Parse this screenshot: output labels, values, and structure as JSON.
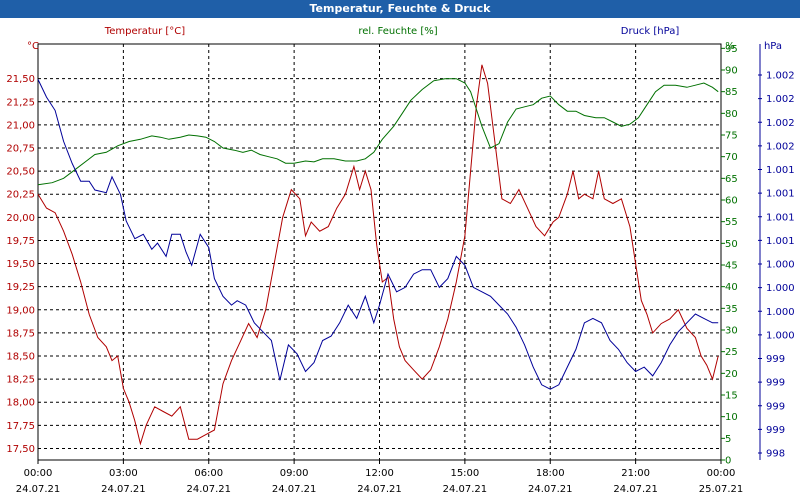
{
  "window": {
    "title": "Temperatur, Feuchte & Druck"
  },
  "colors": {
    "temperature": "#b00000",
    "humidity": "#007000",
    "pressure": "#000099",
    "titlebar": "#1f5fa8"
  },
  "chart_data": {
    "type": "line",
    "grid": true,
    "xlim": [
      "2021-07-24 00:00",
      "2021-07-25 00:00"
    ],
    "x_ticks": [
      {
        "time": "00:00",
        "date": "24.07.21"
      },
      {
        "time": "03:00",
        "date": "24.07.21"
      },
      {
        "time": "06:00",
        "date": "24.07.21"
      },
      {
        "time": "09:00",
        "date": "24.07.21"
      },
      {
        "time": "12:00",
        "date": "24.07.21"
      },
      {
        "time": "15:00",
        "date": "24.07.21"
      },
      {
        "time": "18:00",
        "date": "24.07.21"
      },
      {
        "time": "21:00",
        "date": "24.07.21"
      },
      {
        "time": "00:00",
        "date": "25.07.21"
      }
    ],
    "axes": {
      "temperature": {
        "label": "Temperatur [°C]",
        "unit": "°C",
        "range": [
          17.375,
          21.875
        ],
        "ticks": [
          "17,50",
          "17,75",
          "18,00",
          "18,25",
          "18,50",
          "18,75",
          "19,00",
          "19,25",
          "19,50",
          "19,75",
          "20,00",
          "20,25",
          "20,50",
          "20,75",
          "21,00",
          "21,25",
          "21,50"
        ]
      },
      "humidity": {
        "label": "rel. Feuchte [%]",
        "unit": "%",
        "range": [
          0,
          96
        ],
        "ticks": [
          "0",
          "5",
          "10",
          "15",
          "20",
          "25",
          "30",
          "35",
          "40",
          "45",
          "50",
          "55",
          "60",
          "65",
          "70",
          "75",
          "80",
          "85",
          "90",
          "95"
        ]
      },
      "pressure": {
        "label": "Druck [hPa]",
        "unit": "hPa",
        "range": [
          998.0,
          1002.7
        ],
        "ticks": [
          "998",
          "999",
          "999",
          "999",
          "999",
          "1.000",
          "1.000",
          "1.000",
          "1.000",
          "1.001",
          "1.001",
          "1.001",
          "1.001",
          "1.002",
          "1.002",
          "1.002",
          "1.002"
        ]
      }
    },
    "series": [
      {
        "name": "Temperatur [°C]",
        "points": [
          [
            0.0,
            20.25
          ],
          [
            0.3,
            20.1
          ],
          [
            0.6,
            20.05
          ],
          [
            0.9,
            19.85
          ],
          [
            1.2,
            19.6
          ],
          [
            1.5,
            19.3
          ],
          [
            1.8,
            18.95
          ],
          [
            2.1,
            18.7
          ],
          [
            2.4,
            18.6
          ],
          [
            2.6,
            18.45
          ],
          [
            2.8,
            18.5
          ],
          [
            3.0,
            18.15
          ],
          [
            3.2,
            18.0
          ],
          [
            3.4,
            17.8
          ],
          [
            3.6,
            17.55
          ],
          [
            3.8,
            17.75
          ],
          [
            4.1,
            17.95
          ],
          [
            4.4,
            17.9
          ],
          [
            4.7,
            17.85
          ],
          [
            5.0,
            17.95
          ],
          [
            5.3,
            17.6
          ],
          [
            5.6,
            17.6
          ],
          [
            5.9,
            17.65
          ],
          [
            6.2,
            17.7
          ],
          [
            6.5,
            18.2
          ],
          [
            6.8,
            18.45
          ],
          [
            7.1,
            18.65
          ],
          [
            7.4,
            18.85
          ],
          [
            7.7,
            18.7
          ],
          [
            8.0,
            19.0
          ],
          [
            8.3,
            19.5
          ],
          [
            8.6,
            20.0
          ],
          [
            8.9,
            20.3
          ],
          [
            9.2,
            20.2
          ],
          [
            9.4,
            19.8
          ],
          [
            9.6,
            19.95
          ],
          [
            9.9,
            19.85
          ],
          [
            10.2,
            19.9
          ],
          [
            10.5,
            20.1
          ],
          [
            10.8,
            20.25
          ],
          [
            11.1,
            20.55
          ],
          [
            11.3,
            20.3
          ],
          [
            11.5,
            20.5
          ],
          [
            11.7,
            20.3
          ],
          [
            11.9,
            19.7
          ],
          [
            12.1,
            19.3
          ],
          [
            12.3,
            19.35
          ],
          [
            12.5,
            18.9
          ],
          [
            12.7,
            18.6
          ],
          [
            12.9,
            18.45
          ],
          [
            13.2,
            18.35
          ],
          [
            13.5,
            18.25
          ],
          [
            13.8,
            18.35
          ],
          [
            14.1,
            18.6
          ],
          [
            14.4,
            18.9
          ],
          [
            14.7,
            19.3
          ],
          [
            15.0,
            19.8
          ],
          [
            15.2,
            20.5
          ],
          [
            15.4,
            21.2
          ],
          [
            15.6,
            21.65
          ],
          [
            15.8,
            21.45
          ],
          [
            16.1,
            20.7
          ],
          [
            16.3,
            20.2
          ],
          [
            16.6,
            20.15
          ],
          [
            16.9,
            20.3
          ],
          [
            17.2,
            20.1
          ],
          [
            17.5,
            19.9
          ],
          [
            17.8,
            19.8
          ],
          [
            18.1,
            19.95
          ],
          [
            18.3,
            20.0
          ],
          [
            18.6,
            20.25
          ],
          [
            18.8,
            20.5
          ],
          [
            19.0,
            20.2
          ],
          [
            19.2,
            20.25
          ],
          [
            19.5,
            20.2
          ],
          [
            19.7,
            20.5
          ],
          [
            19.9,
            20.2
          ],
          [
            20.2,
            20.15
          ],
          [
            20.5,
            20.2
          ],
          [
            20.8,
            19.9
          ],
          [
            21.0,
            19.5
          ],
          [
            21.2,
            19.1
          ],
          [
            21.4,
            18.95
          ],
          [
            21.6,
            18.75
          ],
          [
            21.9,
            18.85
          ],
          [
            22.2,
            18.9
          ],
          [
            22.5,
            19.0
          ],
          [
            22.8,
            18.8
          ],
          [
            23.1,
            18.7
          ],
          [
            23.3,
            18.5
          ],
          [
            23.5,
            18.4
          ],
          [
            23.7,
            18.25
          ],
          [
            23.9,
            18.5
          ]
        ]
      },
      {
        "name": "rel. Feuchte [%]",
        "points": [
          [
            0.0,
            63.5
          ],
          [
            0.5,
            64
          ],
          [
            0.9,
            65
          ],
          [
            1.3,
            67
          ],
          [
            1.7,
            69
          ],
          [
            2.0,
            70.5
          ],
          [
            2.4,
            71
          ],
          [
            2.8,
            72.5
          ],
          [
            3.2,
            73.5
          ],
          [
            3.6,
            74
          ],
          [
            4.0,
            74.8
          ],
          [
            4.3,
            74.5
          ],
          [
            4.6,
            74
          ],
          [
            5.0,
            74.5
          ],
          [
            5.3,
            75
          ],
          [
            5.6,
            74.8
          ],
          [
            5.9,
            74.5
          ],
          [
            6.2,
            73.5
          ],
          [
            6.5,
            72
          ],
          [
            6.9,
            71.5
          ],
          [
            7.2,
            71
          ],
          [
            7.5,
            71.5
          ],
          [
            7.8,
            70.5
          ],
          [
            8.1,
            70
          ],
          [
            8.4,
            69.5
          ],
          [
            8.7,
            68.5
          ],
          [
            9.0,
            68.5
          ],
          [
            9.4,
            69
          ],
          [
            9.7,
            68.8
          ],
          [
            10.0,
            69.5
          ],
          [
            10.4,
            69.5
          ],
          [
            10.8,
            69
          ],
          [
            11.2,
            69
          ],
          [
            11.5,
            69.5
          ],
          [
            11.8,
            71
          ],
          [
            12.1,
            74
          ],
          [
            12.5,
            77
          ],
          [
            12.8,
            80
          ],
          [
            13.1,
            83
          ],
          [
            13.5,
            85.5
          ],
          [
            13.9,
            87.5
          ],
          [
            14.3,
            88
          ],
          [
            14.7,
            88
          ],
          [
            15.0,
            87
          ],
          [
            15.2,
            85
          ],
          [
            15.4,
            81
          ],
          [
            15.6,
            77
          ],
          [
            15.9,
            72
          ],
          [
            16.2,
            73
          ],
          [
            16.5,
            78
          ],
          [
            16.8,
            81
          ],
          [
            17.1,
            81.5
          ],
          [
            17.4,
            82
          ],
          [
            17.7,
            83.5
          ],
          [
            18.0,
            84
          ],
          [
            18.3,
            82
          ],
          [
            18.6,
            80.5
          ],
          [
            18.9,
            80.5
          ],
          [
            19.2,
            79.5
          ],
          [
            19.6,
            79
          ],
          [
            19.9,
            79
          ],
          [
            20.2,
            78
          ],
          [
            20.5,
            77
          ],
          [
            20.8,
            77.5
          ],
          [
            21.1,
            79
          ],
          [
            21.4,
            82
          ],
          [
            21.7,
            85
          ],
          [
            22.0,
            86.5
          ],
          [
            22.4,
            86.5
          ],
          [
            22.8,
            86
          ],
          [
            23.1,
            86.5
          ],
          [
            23.4,
            87
          ],
          [
            23.7,
            86
          ],
          [
            23.9,
            85
          ]
        ]
      },
      {
        "name": "Druck [hPa]",
        "points": [
          [
            0.0,
            1002.3
          ],
          [
            0.3,
            1002.1
          ],
          [
            0.6,
            1001.95
          ],
          [
            0.9,
            1001.6
          ],
          [
            1.2,
            1001.35
          ],
          [
            1.5,
            1001.15
          ],
          [
            1.8,
            1001.15
          ],
          [
            2.0,
            1001.05
          ],
          [
            2.4,
            1001.02
          ],
          [
            2.6,
            1001.2
          ],
          [
            2.9,
            1001.0
          ],
          [
            3.1,
            1000.7
          ],
          [
            3.4,
            1000.5
          ],
          [
            3.7,
            1000.55
          ],
          [
            4.0,
            1000.38
          ],
          [
            4.2,
            1000.45
          ],
          [
            4.5,
            1000.3
          ],
          [
            4.7,
            1000.55
          ],
          [
            5.0,
            1000.55
          ],
          [
            5.2,
            1000.35
          ],
          [
            5.4,
            1000.2
          ],
          [
            5.7,
            1000.55
          ],
          [
            6.0,
            1000.4
          ],
          [
            6.2,
            1000.05
          ],
          [
            6.5,
            999.85
          ],
          [
            6.8,
            999.75
          ],
          [
            7.0,
            999.8
          ],
          [
            7.3,
            999.75
          ],
          [
            7.6,
            999.55
          ],
          [
            7.9,
            999.45
          ],
          [
            8.2,
            999.35
          ],
          [
            8.5,
            998.9
          ],
          [
            8.8,
            999.3
          ],
          [
            9.1,
            999.2
          ],
          [
            9.4,
            999.0
          ],
          [
            9.7,
            999.1
          ],
          [
            10.0,
            999.35
          ],
          [
            10.3,
            999.4
          ],
          [
            10.6,
            999.55
          ],
          [
            10.9,
            999.75
          ],
          [
            11.2,
            999.6
          ],
          [
            11.5,
            999.85
          ],
          [
            11.8,
            999.55
          ],
          [
            12.0,
            999.75
          ],
          [
            12.3,
            1000.1
          ],
          [
            12.6,
            999.9
          ],
          [
            12.9,
            999.95
          ],
          [
            13.2,
            1000.1
          ],
          [
            13.5,
            1000.15
          ],
          [
            13.8,
            1000.15
          ],
          [
            14.1,
            999.95
          ],
          [
            14.4,
            1000.05
          ],
          [
            14.7,
            1000.3
          ],
          [
            15.0,
            1000.2
          ],
          [
            15.3,
            999.95
          ],
          [
            15.6,
            999.9
          ],
          [
            15.9,
            999.85
          ],
          [
            16.2,
            999.75
          ],
          [
            16.5,
            999.65
          ],
          [
            16.8,
            999.5
          ],
          [
            17.1,
            999.3
          ],
          [
            17.4,
            999.05
          ],
          [
            17.7,
            998.85
          ],
          [
            18.0,
            998.8
          ],
          [
            18.3,
            998.85
          ],
          [
            18.6,
            999.05
          ],
          [
            18.9,
            999.25
          ],
          [
            19.2,
            999.55
          ],
          [
            19.5,
            999.6
          ],
          [
            19.8,
            999.55
          ],
          [
            20.1,
            999.35
          ],
          [
            20.4,
            999.25
          ],
          [
            20.7,
            999.1
          ],
          [
            21.0,
            999.0
          ],
          [
            21.3,
            999.05
          ],
          [
            21.6,
            998.95
          ],
          [
            21.9,
            999.1
          ],
          [
            22.2,
            999.3
          ],
          [
            22.5,
            999.45
          ],
          [
            22.8,
            999.55
          ],
          [
            23.1,
            999.65
          ],
          [
            23.4,
            999.6
          ],
          [
            23.7,
            999.55
          ],
          [
            23.9,
            999.55
          ]
        ]
      }
    ]
  }
}
